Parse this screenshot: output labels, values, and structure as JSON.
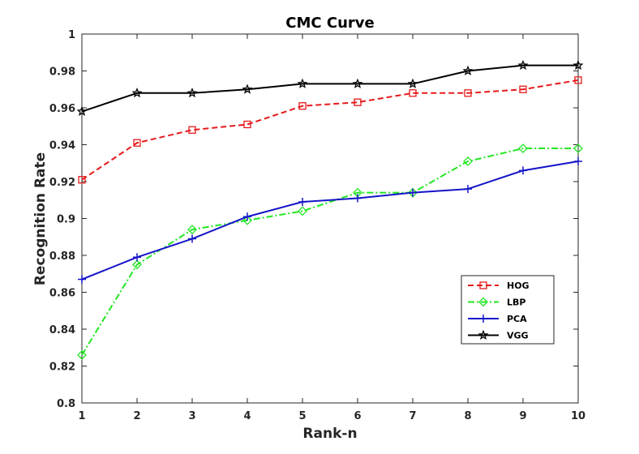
{
  "chart_data": {
    "type": "line",
    "title": "CMC Curve",
    "xlabel": "Rank-n",
    "ylabel": "Recognition Rate",
    "xlim": [
      1,
      10
    ],
    "ylim": [
      0.8,
      1.0
    ],
    "x": [
      1,
      2,
      3,
      4,
      5,
      6,
      7,
      8,
      9,
      10
    ],
    "x_ticks": [
      1,
      2,
      3,
      4,
      5,
      6,
      7,
      8,
      9,
      10
    ],
    "x_tick_labels": [
      "1",
      "2",
      "3",
      "4",
      "5",
      "6",
      "7",
      "8",
      "9",
      "10"
    ],
    "y_ticks": [
      0.8,
      0.82,
      0.84,
      0.86,
      0.88,
      0.9,
      0.92,
      0.94,
      0.96,
      0.98,
      1.0
    ],
    "y_tick_labels": [
      "0.8",
      "0.82",
      "0.84",
      "0.86",
      "0.88",
      "0.9",
      "0.92",
      "0.94",
      "0.96",
      "0.98",
      "1"
    ],
    "grid": false,
    "legend_position": "bottom-right",
    "series": [
      {
        "name": "HOG",
        "color": "#e6191a",
        "line_style": "dashed",
        "marker": "square",
        "values": [
          0.921,
          0.941,
          0.948,
          0.951,
          0.961,
          0.963,
          0.968,
          0.968,
          0.97,
          0.975
        ]
      },
      {
        "name": "LBP",
        "color": "#22e622",
        "line_style": "dash-dot",
        "marker": "diamond",
        "values": [
          0.826,
          0.875,
          0.894,
          0.899,
          0.904,
          0.914,
          0.914,
          0.931,
          0.938,
          0.938
        ]
      },
      {
        "name": "PCA",
        "color": "#1414c8",
        "line_style": "solid",
        "marker": "plus",
        "values": [
          0.867,
          0.879,
          0.889,
          0.901,
          0.909,
          0.911,
          0.914,
          0.916,
          0.926,
          0.931
        ]
      },
      {
        "name": "VGG",
        "color": "#000000",
        "line_style": "solid",
        "marker": "star",
        "values": [
          0.958,
          0.968,
          0.968,
          0.97,
          0.973,
          0.973,
          0.973,
          0.98,
          0.983,
          0.983
        ]
      }
    ]
  }
}
